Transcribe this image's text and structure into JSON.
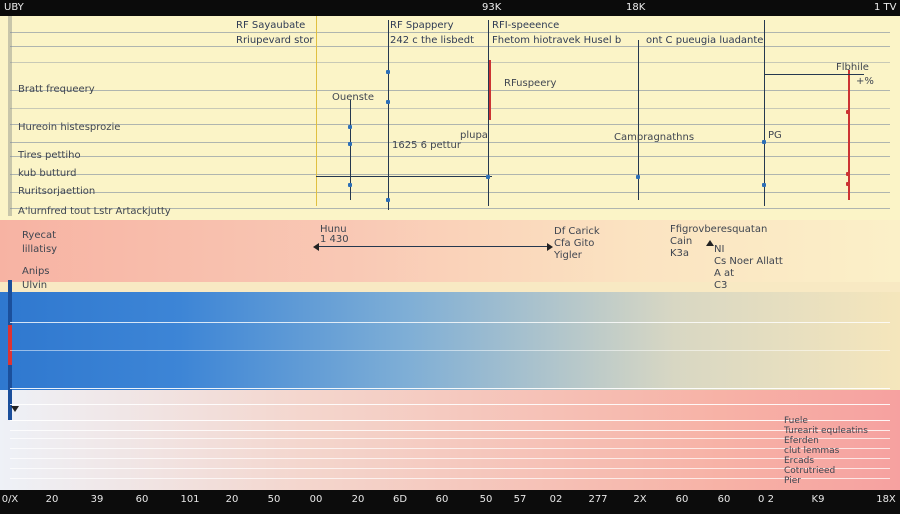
{
  "top": {
    "left": "UBY",
    "mid1": "93K",
    "mid2": "18K",
    "right": "1 TV"
  },
  "top_labels": [
    {
      "text": "RF Sayaubate"
    },
    {
      "text": "Rriupevard stor"
    },
    {
      "text": "RF Spappery"
    },
    {
      "text": "242 c the lisbedt"
    },
    {
      "text": "RFI-speeence"
    },
    {
      "text": "Fhetom hiotravek Husel b"
    },
    {
      "text": "ont C pueugia luadante"
    }
  ],
  "left_labels": [
    {
      "text": "Bratt frequeery"
    },
    {
      "text": "Hureoin histesprozie"
    },
    {
      "text": "Tires pettiho"
    },
    {
      "text": "kub butturd"
    },
    {
      "text": "Ruritsorjaettion"
    },
    {
      "text": "A'lurnfred tout Lstr Artackjutty"
    }
  ],
  "mid_labels": [
    {
      "text": "Ouenste"
    },
    {
      "text": "RFuspeery"
    },
    {
      "text": "1625 6 pettur"
    },
    {
      "text": "plupa"
    },
    {
      "text": "Campragnathns"
    },
    {
      "text": "PG"
    },
    {
      "text": "Flbhile"
    },
    {
      "text": "+%"
    }
  ],
  "pink_labels": [
    {
      "text": "Ryecat"
    },
    {
      "text": "lillatisy"
    },
    {
      "text": "Anips"
    },
    {
      "text": "Ulvin"
    },
    {
      "text": "Hunu"
    },
    {
      "text": "1 430"
    },
    {
      "text": "Df Carick"
    },
    {
      "text": "Cfa Gito"
    },
    {
      "text": "Yigler"
    },
    {
      "text": "Ffigrovberesquatan"
    },
    {
      "text": "Cain"
    },
    {
      "text": "K3a"
    },
    {
      "text": "NI"
    },
    {
      "text": "Cs Noer Allatt"
    },
    {
      "text": "A at"
    },
    {
      "text": "C3"
    }
  ],
  "bottom_right_labels": [
    {
      "text": "Fuele"
    },
    {
      "text": "Turearit equleatins"
    },
    {
      "text": "Eferden"
    },
    {
      "text": "clut lemmas"
    },
    {
      "text": "Ercads"
    },
    {
      "text": "Cotrutrieed"
    },
    {
      "text": "Pier"
    }
  ],
  "axis": [
    "0/X",
    "20",
    "39",
    "60",
    "101",
    "20",
    "50",
    "00",
    "20",
    "6D",
    "60",
    "50",
    "57",
    "02",
    "277",
    "2X",
    "60",
    "60",
    "0 2",
    "K9",
    "18X"
  ]
}
